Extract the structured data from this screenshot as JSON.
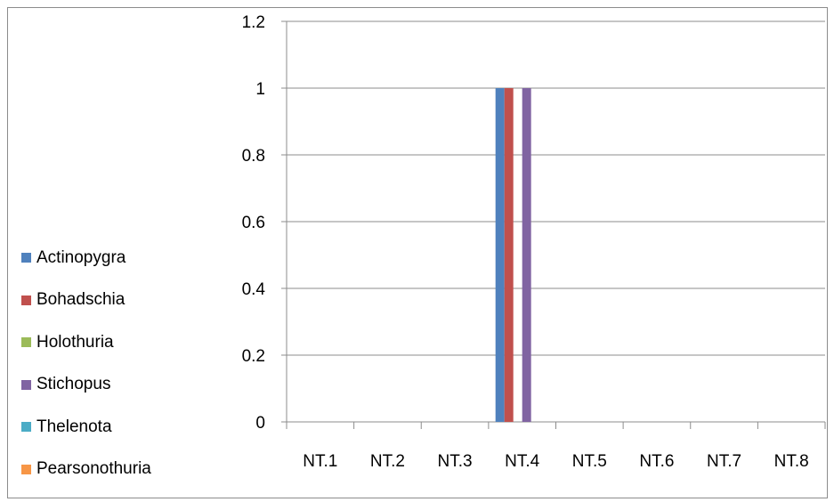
{
  "chart_data": {
    "type": "bar",
    "categories": [
      "NT.1",
      "NT.2",
      "NT.3",
      "NT.4",
      "NT.5",
      "NT.6",
      "NT.7",
      "NT.8"
    ],
    "series": [
      {
        "name": "Actinopygra",
        "color": "#4f81bd",
        "values": [
          0,
          0,
          0,
          1,
          0,
          0,
          0,
          0
        ]
      },
      {
        "name": "Bohadschia",
        "color": "#c0504d",
        "values": [
          0,
          0,
          0,
          1,
          0,
          0,
          0,
          0
        ]
      },
      {
        "name": "Holothuria",
        "color": "#9bbb59",
        "values": [
          0,
          0,
          0,
          0,
          0,
          0,
          0,
          0
        ]
      },
      {
        "name": "Stichopus",
        "color": "#8064a2",
        "values": [
          0,
          0,
          0,
          1,
          0,
          0,
          0,
          0
        ]
      },
      {
        "name": "Thelenota",
        "color": "#4bacc6",
        "values": [
          0,
          0,
          0,
          0,
          0,
          0,
          0,
          0
        ]
      },
      {
        "name": "Pearsonothuria",
        "color": "#f79646",
        "values": [
          0,
          0,
          0,
          0,
          0,
          0,
          0,
          0
        ]
      }
    ],
    "y_ticks": [
      "0",
      "0.2",
      "0.4",
      "0.6",
      "0.8",
      "1",
      "1.2"
    ],
    "ylim": [
      0,
      1.2
    ],
    "grid": true,
    "legend_position": "left"
  }
}
